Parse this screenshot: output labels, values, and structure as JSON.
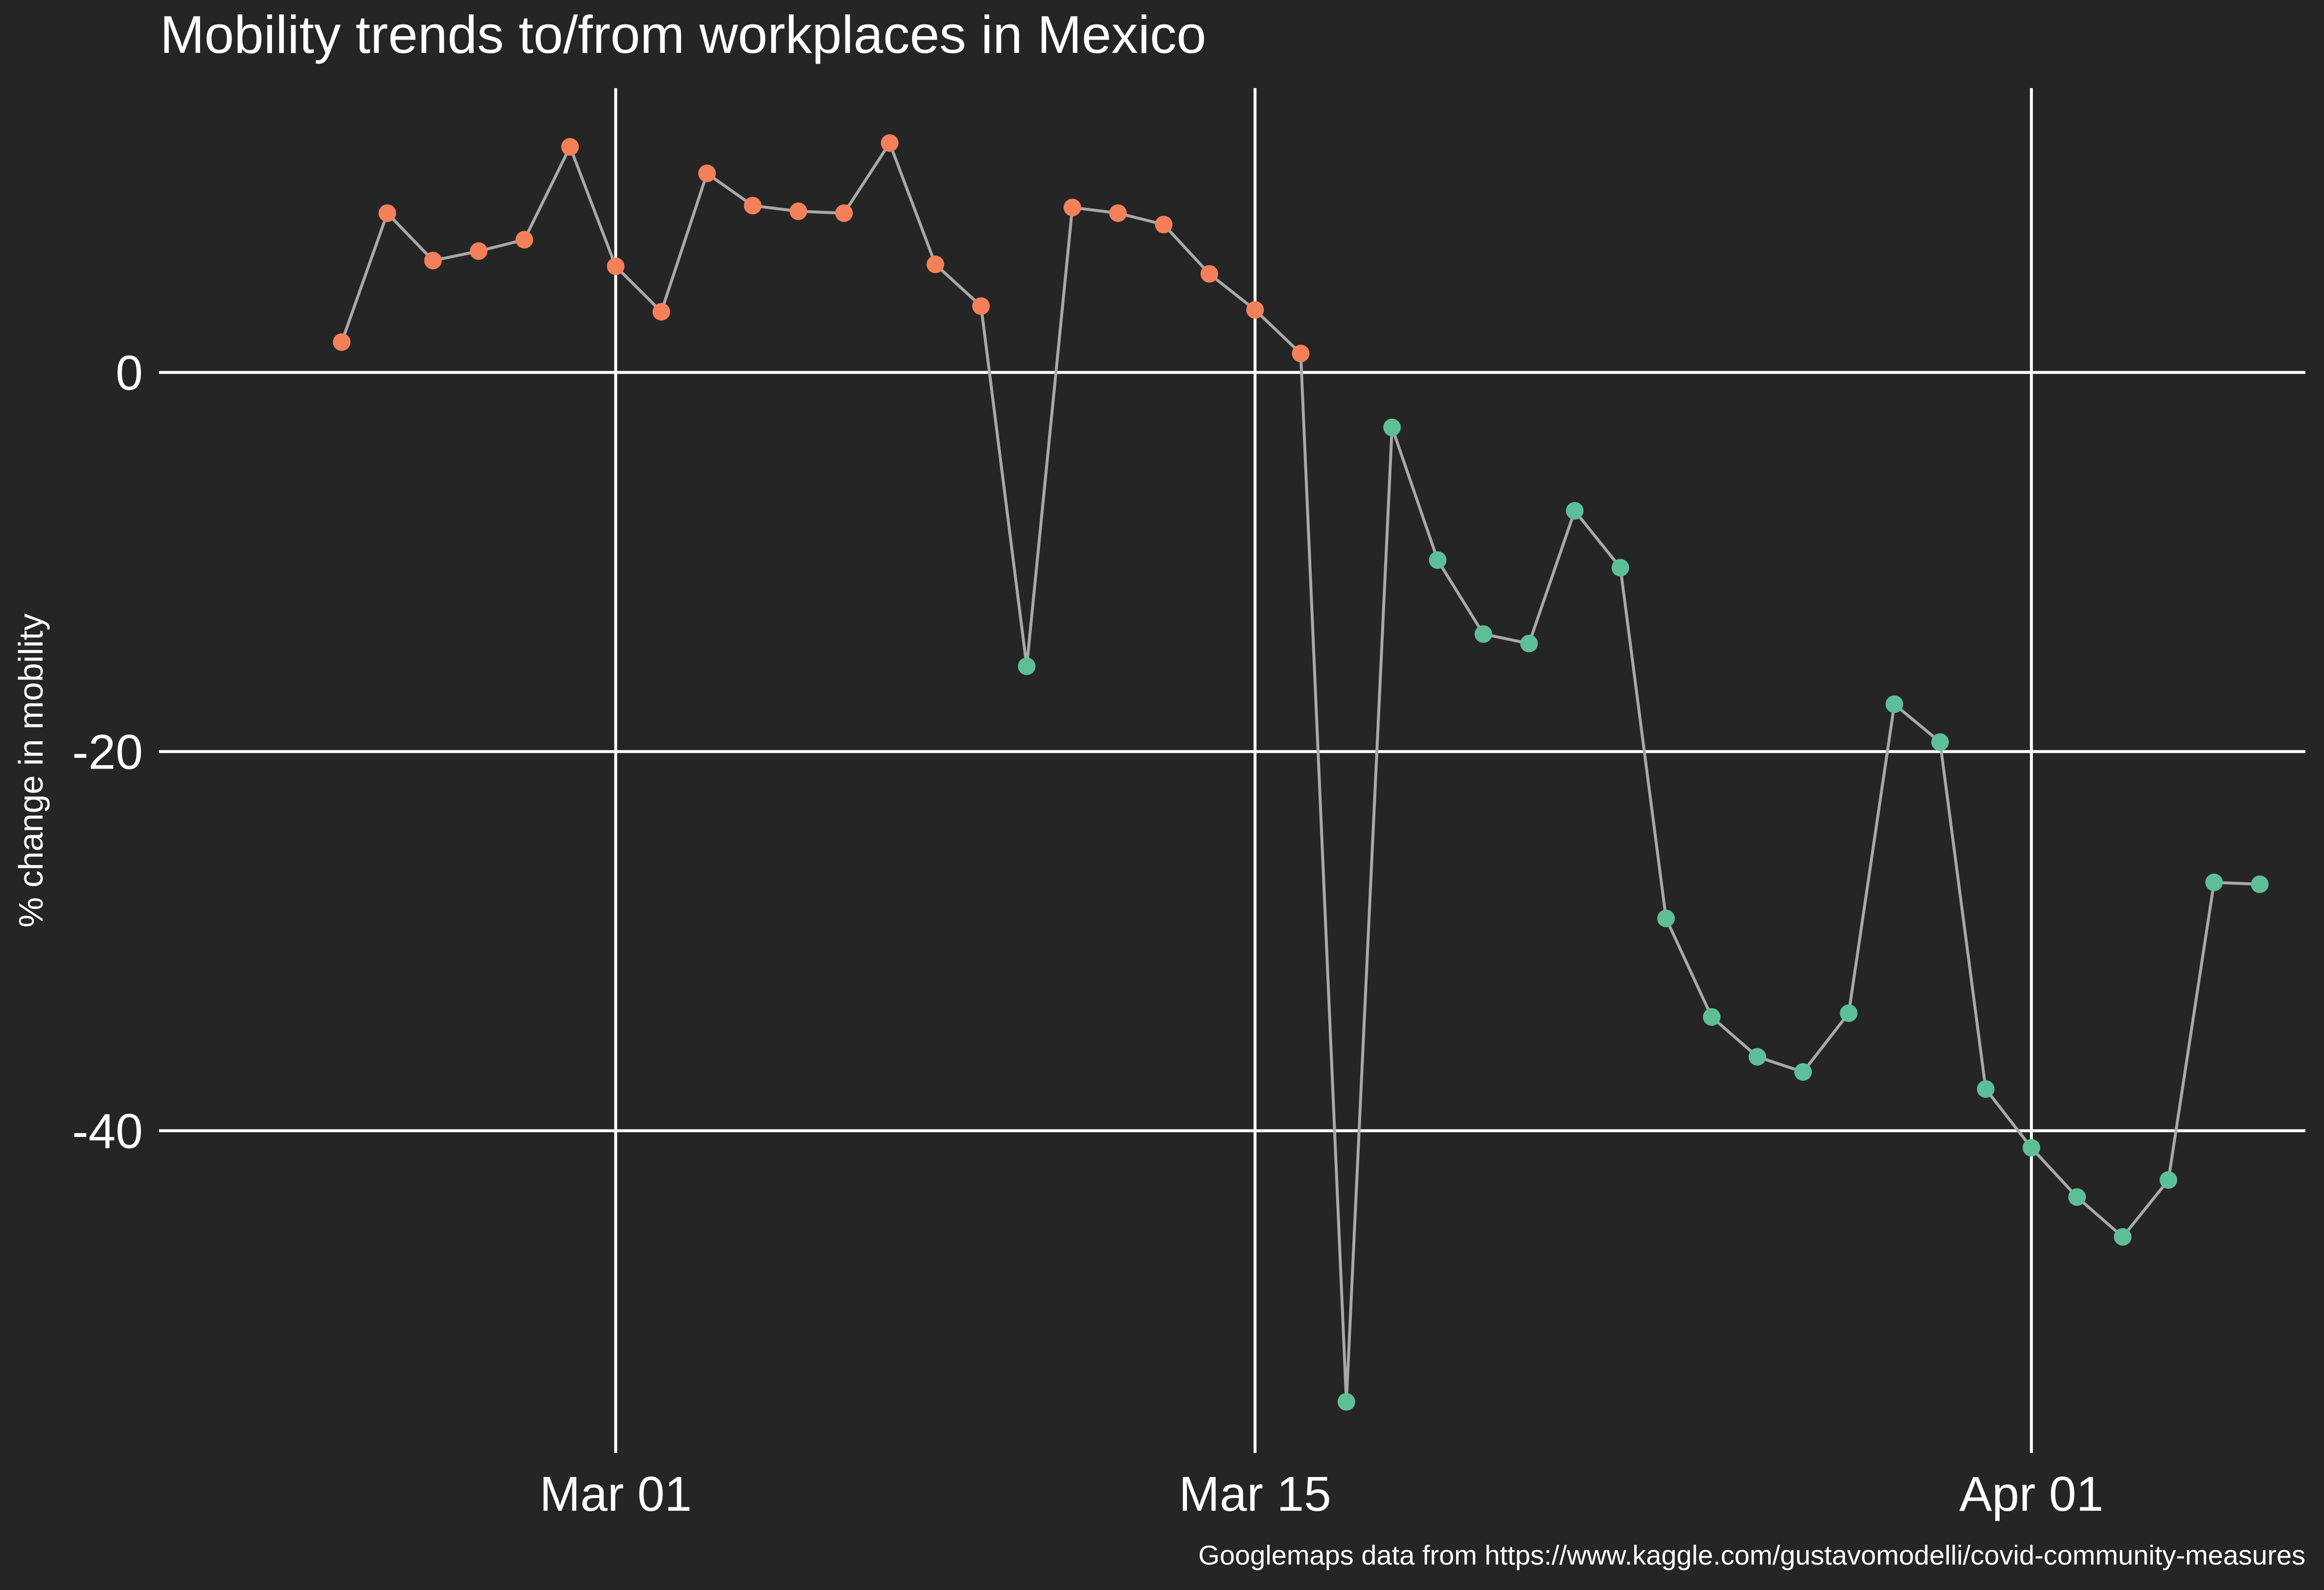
{
  "chart_data": {
    "type": "line",
    "title": "Mobility trends to/from workplaces in Mexico",
    "xlabel": "",
    "ylabel": "% change in mobility",
    "caption": "Googlemaps data from https://www.kaggle.com/gustavomodelli/covid-community-measures",
    "x_range": [
      "2020-02-20",
      "2020-04-07"
    ],
    "ylim": [
      -57,
      15
    ],
    "grid": true,
    "legend": "none",
    "x_ticks": [
      {
        "date": "2020-03-01",
        "label": "Mar 01"
      },
      {
        "date": "2020-03-15",
        "label": "Mar 15"
      },
      {
        "date": "2020-04-01",
        "label": "Apr 01"
      }
    ],
    "y_ticks": [
      {
        "value": 0,
        "label": "0"
      },
      {
        "value": -20,
        "label": "-20"
      },
      {
        "value": -40,
        "label": "-40"
      }
    ],
    "colors": {
      "background": "#252525",
      "grid": "#ffffff",
      "line": "#a9a9a9",
      "positive": "#f4805a",
      "negative": "#5dbf9a"
    },
    "x": [
      "2020-02-24",
      "2020-02-25",
      "2020-02-26",
      "2020-02-27",
      "2020-02-28",
      "2020-02-29",
      "2020-03-01",
      "2020-03-02",
      "2020-03-03",
      "2020-03-04",
      "2020-03-05",
      "2020-03-06",
      "2020-03-07",
      "2020-03-08",
      "2020-03-09",
      "2020-03-10",
      "2020-03-11",
      "2020-03-12",
      "2020-03-13",
      "2020-03-14",
      "2020-03-15",
      "2020-03-16",
      "2020-03-17",
      "2020-03-18",
      "2020-03-19",
      "2020-03-20",
      "2020-03-21",
      "2020-03-22",
      "2020-03-23",
      "2020-03-24",
      "2020-03-25",
      "2020-03-26",
      "2020-03-27",
      "2020-03-28",
      "2020-03-29",
      "2020-03-30",
      "2020-03-31",
      "2020-04-01",
      "2020-04-02",
      "2020-04-03",
      "2020-04-04",
      "2020-04-05",
      "2020-04-06"
    ],
    "values": [
      1.6,
      8.4,
      5.9,
      6.4,
      7.0,
      11.9,
      5.6,
      3.2,
      10.5,
      8.8,
      8.5,
      8.4,
      12.1,
      5.7,
      3.5,
      -15.5,
      8.7,
      8.4,
      7.8,
      5.2,
      3.3,
      1.0,
      -54.3,
      -2.9,
      -9.9,
      -13.8,
      -14.3,
      -7.3,
      -10.3,
      -28.8,
      -34.0,
      -36.1,
      -36.9,
      -33.8,
      -17.5,
      -19.5,
      -37.8,
      -40.9,
      -43.5,
      -45.6,
      -42.6,
      -26.9,
      -27.0
    ]
  }
}
